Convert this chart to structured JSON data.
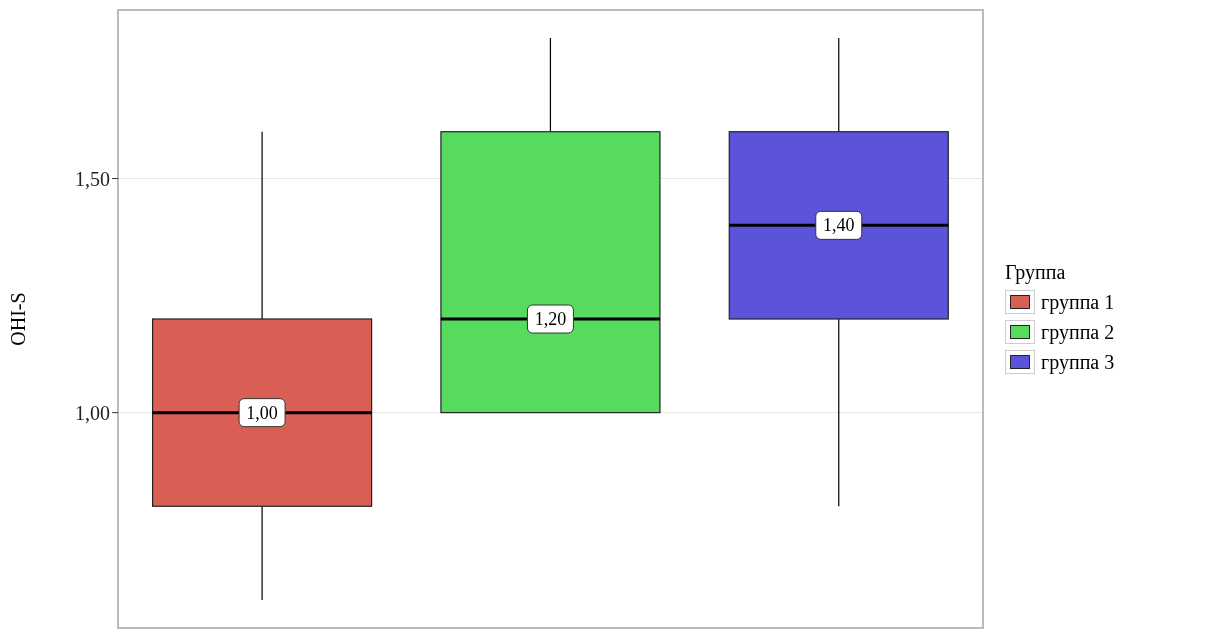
{
  "chart_data": {
    "type": "box",
    "ylabel": "OHI-S",
    "legend_title": "Группа",
    "categories": [
      null,
      null,
      null
    ],
    "ylim": [
      0.54,
      1.86
    ],
    "yticks": [
      {
        "value": 1,
        "label": "1,00"
      },
      {
        "value": 1.5,
        "label": "1,50"
      }
    ],
    "grid": true,
    "legend": "right",
    "tick_labels": "y",
    "series": [
      {
        "name": "группа 1",
        "color": "#d95f55",
        "boxes": [
          {
            "low": 0.6,
            "q1": 0.8,
            "median": 1.0,
            "q3": 1.2,
            "high": 1.6
          },
          null,
          null
        ],
        "value_labels": [
          "1,00",
          null,
          null
        ]
      },
      {
        "name": "группа 2",
        "color": "#57db5e",
        "boxes": [
          null,
          {
            "low": 1.0,
            "q1": 1.0,
            "median": 1.2,
            "q3": 1.6,
            "high": 1.8
          },
          null
        ],
        "value_labels": [
          null,
          "1,20",
          null
        ]
      },
      {
        "name": "группа 3",
        "color": "#5b54da",
        "boxes": [
          null,
          null,
          {
            "low": 0.8,
            "q1": 1.2,
            "median": 1.4,
            "q3": 1.6,
            "high": 1.8
          }
        ],
        "value_labels": [
          null,
          null,
          "1,40"
        ]
      }
    ]
  }
}
